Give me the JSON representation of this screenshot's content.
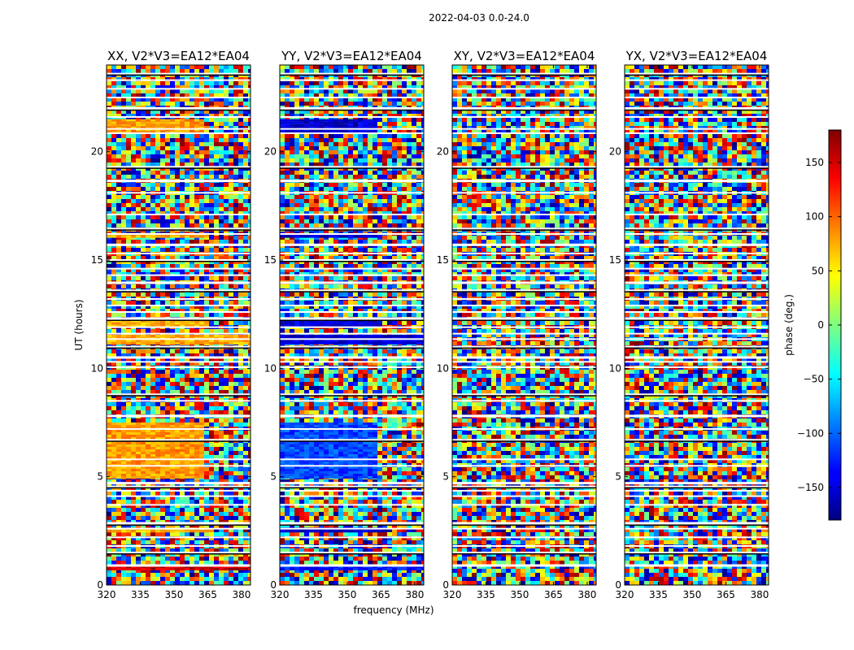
{
  "chart_data": {
    "type": "heatmap",
    "suptitle": "2022-04-03 0.0-24.0",
    "xlabel": "frequency (MHz)",
    "ylabel": "UT (hours)",
    "xlim": [
      320,
      384
    ],
    "ylim": [
      0,
      24
    ],
    "xticks": [
      320,
      335,
      350,
      365,
      380
    ],
    "yticks": [
      0,
      5,
      10,
      15,
      20
    ],
    "panels": [
      {
        "title": "XX, V2*V3=EA12*EA04",
        "polarization": "XX"
      },
      {
        "title": "YY, V2*V3=EA12*EA04",
        "polarization": "YY"
      },
      {
        "title": "XY, V2*V3=EA12*EA04",
        "polarization": "XY"
      },
      {
        "title": "YX, V2*V3=EA12*EA04",
        "polarization": "YX"
      }
    ],
    "colorbar": {
      "label": "phase (deg.)",
      "range": [
        -180,
        180
      ],
      "ticks": [
        150,
        100,
        50,
        0,
        -50,
        -100,
        -150
      ],
      "tick_labels": [
        "150",
        "100",
        "50",
        "0",
        "−50",
        "−100",
        "−150"
      ],
      "colormap": "jet"
    },
    "flagged_rows_ut": [
      0.9,
      1.5,
      1.8,
      2.2,
      2.6,
      2.85,
      3.7,
      4.1,
      4.35,
      4.55,
      4.7,
      5.5,
      5.8,
      6.7,
      7.2,
      7.8,
      8.5,
      8.8,
      10.05,
      10.3,
      10.5,
      11.0,
      11.35,
      11.6,
      11.9,
      12.3,
      12.6,
      12.9,
      13.2,
      13.6,
      13.95,
      14.3,
      14.6,
      15.0,
      15.3,
      15.7,
      16.2,
      16.45,
      17.1,
      18.1,
      18.65,
      19.3,
      20.85,
      21.05,
      21.6,
      22.0,
      22.5,
      22.9,
      23.3,
      23.6
    ],
    "coherent_bands_ut": [
      {
        "ut": [
          0.75,
          0.9
        ],
        "xx_phase": 155,
        "yy_phase": -130,
        "freq_end_mhz": 384
      },
      {
        "ut": [
          2.5,
          2.65
        ],
        "xx_phase": 70,
        "yy_phase": -150,
        "freq_end_mhz": 364
      },
      {
        "ut": [
          5.0,
          7.5
        ],
        "xx_phase": 80,
        "yy_phase": -110,
        "freq_end_mhz": 362
      },
      {
        "ut": [
          11.2,
          11.55
        ],
        "xx_phase": 75,
        "yy_phase": -150,
        "freq_end_mhz": 384
      },
      {
        "ut": [
          12.0,
          12.35
        ],
        "xx_phase": 70,
        "yy_phase": -150,
        "freq_end_mhz": 364
      },
      {
        "ut": [
          16.1,
          16.25
        ],
        "xx_phase": 75,
        "yy_phase": -150,
        "freq_end_mhz": 364
      },
      {
        "ut": [
          20.9,
          21.5
        ],
        "xx_phase": 80,
        "yy_phase": -150,
        "freq_end_mhz": 362
      }
    ]
  }
}
